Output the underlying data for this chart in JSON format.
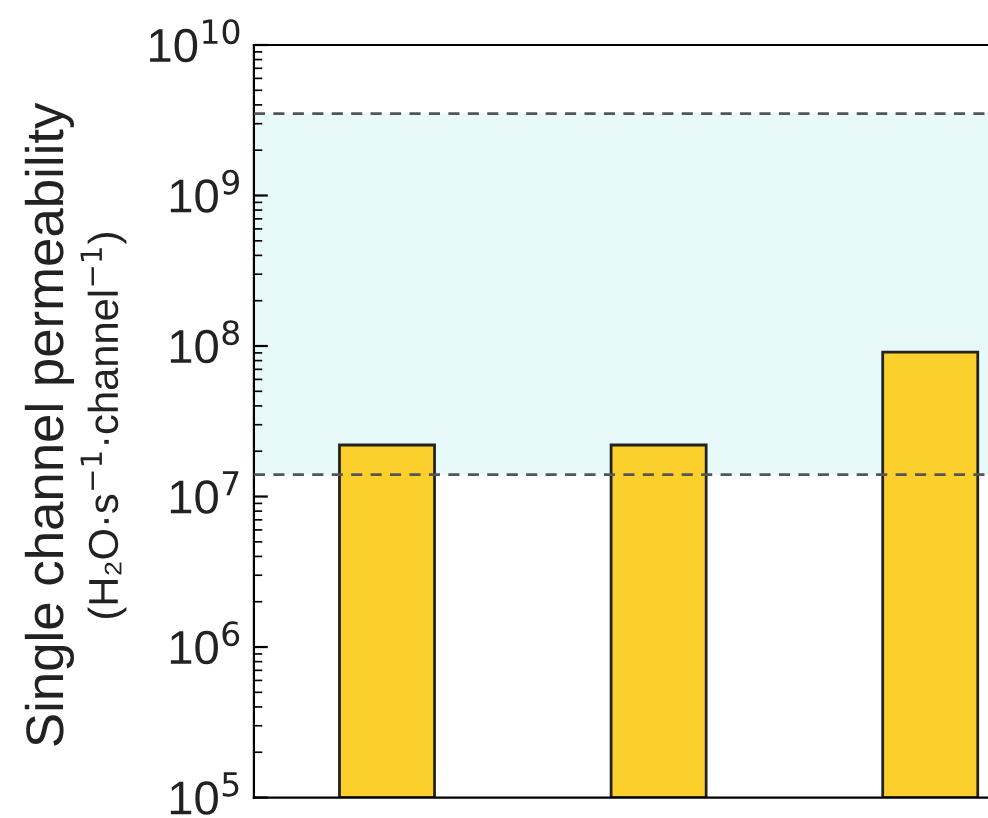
{
  "chart_data": {
    "type": "bar",
    "ylabel": "Single channel permeability\n(H₂O·s$^{−1}$·channel$^{−1}$)",
    "categories": [
      null,
      null,
      null
    ],
    "values": [
      22000000.0,
      22000000.0,
      91000000.0
    ],
    "color": "#fcd02c",
    "log": "y",
    "ylim": [
      100000,
      10000000000
    ],
    "yticks": [
      {
        "value": 100000,
        "label": "10$^{5}$"
      },
      {
        "value": 1000000,
        "label": "10$^{6}$"
      },
      {
        "value": 10000000,
        "label": "10$^{7}$"
      },
      {
        "value": 100000000,
        "label": "10$^{8}$"
      },
      {
        "value": 1000000000,
        "label": "10$^{9}$"
      },
      {
        "value": 10000000000,
        "label": "10$^{10}$"
      }
    ],
    "bands": [
      {
        "axis": "y",
        "from": 14000000.0,
        "to": 3500000000.0,
        "color": "#e8f9f9"
      }
    ],
    "ref_lines": [
      {
        "axis": "y",
        "value": 14000000.0,
        "color": "#555555",
        "line_style": "dashed"
      },
      {
        "axis": "y",
        "value": 3500000000.0,
        "color": "#555555",
        "line_style": "dashed"
      }
    ],
    "grid": false,
    "legend": false
  }
}
